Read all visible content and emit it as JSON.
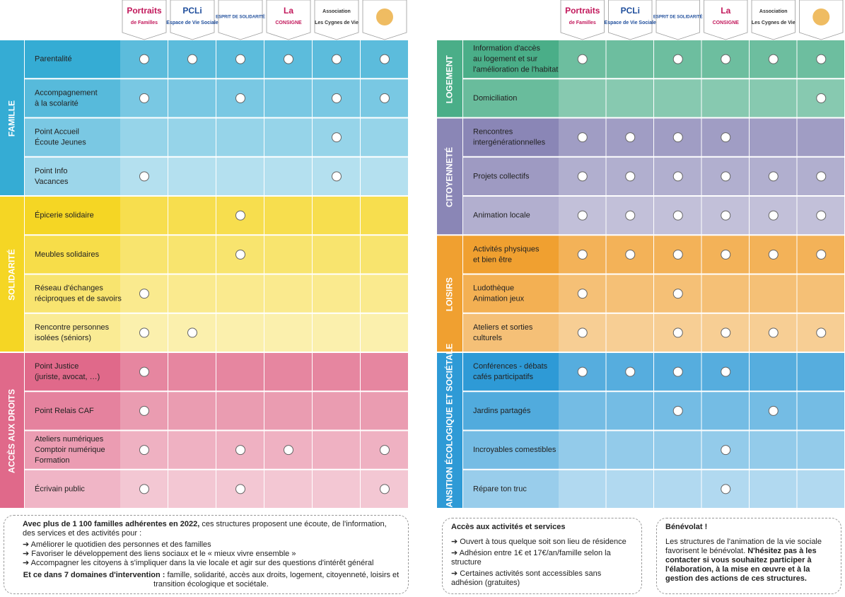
{
  "structures": [
    {
      "lines": [
        "Portraits",
        "de Familles"
      ],
      "color": "#c2185b"
    },
    {
      "lines": [
        "PCLi",
        "Espace de Vie Sociale"
      ],
      "color": "#1f4e9c"
    },
    {
      "lines": [
        "ESPRIT DE SOLIDARITÉ"
      ],
      "color": "#1f4e9c"
    },
    {
      "lines": [
        "La",
        "CONSIGNE"
      ],
      "color": "#c2185b"
    },
    {
      "lines": [
        "Association",
        "Les Cygnes de Vie"
      ],
      "color": "#333333"
    },
    {
      "color": "#e8a020"
    }
  ],
  "panels": [
    {
      "sections": [
        {
          "title": "FAMILLE",
          "color": "#35acd4",
          "rows": [
            {
              "label": [
                "Parentalité"
              ],
              "structures": [
                0,
                1,
                2,
                3,
                4,
                5
              ]
            },
            {
              "label": [
                "Accompagnement",
                "à la scolarité"
              ],
              "structures": [
                0,
                2,
                4,
                5
              ]
            },
            {
              "label": [
                "Point Accueil",
                "Écoute Jeunes"
              ],
              "structures": [
                4
              ]
            },
            {
              "label": [
                "Point Info",
                "Vacances"
              ],
              "structures": [
                0,
                4
              ]
            }
          ]
        },
        {
          "title": "SOLIDARITÉ",
          "color": "#f5d624",
          "rows": [
            {
              "label": [
                "Épicerie solidaire"
              ],
              "structures": [
                2
              ]
            },
            {
              "label": [
                "Meubles solidaires"
              ],
              "structures": [
                2
              ]
            },
            {
              "label": [
                "Réseau d'échanges",
                "réciproques et de savoirs"
              ],
              "structures": [
                0
              ]
            },
            {
              "label": [
                "Rencontre personnes",
                "isolées (séniors)"
              ],
              "structures": [
                0,
                1
              ]
            }
          ]
        },
        {
          "title": "ACCÈS AUX DROITS",
          "color": "#e0698a",
          "rows": [
            {
              "label": [
                "Point Justice",
                "(juriste, avocat, …)"
              ],
              "structures": [
                0
              ]
            },
            {
              "label": [
                "Point Relais CAF"
              ],
              "structures": [
                0
              ]
            },
            {
              "label": [
                "Ateliers numériques",
                "Comptoir numérique",
                "Formation"
              ],
              "structures": [
                0,
                2,
                3,
                5
              ]
            },
            {
              "label": [
                "Écrivain public"
              ],
              "structures": [
                0,
                2,
                5
              ]
            }
          ]
        }
      ]
    },
    {
      "sections": [
        {
          "title": "LOGEMENT",
          "color": "#4aae88",
          "rows": [
            {
              "label": [
                "Information d'accès",
                "au logement et sur",
                "l'amélioration de l'habitat"
              ],
              "structures": [
                0,
                2,
                3,
                4,
                5
              ]
            },
            {
              "label": [
                "Domiciliation"
              ],
              "structures": [
                5
              ]
            }
          ]
        },
        {
          "title": "CITOYENNETÉ",
          "color": "#8a86b6",
          "rows": [
            {
              "label": [
                "Rencontres",
                "intergénérationnelles"
              ],
              "structures": [
                0,
                1,
                2,
                3
              ]
            },
            {
              "label": [
                "Projets collectifs"
              ],
              "structures": [
                0,
                1,
                2,
                3,
                4,
                5
              ]
            },
            {
              "label": [
                "Animation locale"
              ],
              "structures": [
                0,
                1,
                2,
                3,
                4,
                5
              ]
            }
          ]
        },
        {
          "title": "LOISIRS",
          "color": "#f0a030",
          "rows": [
            {
              "label": [
                "Activités physiques",
                "et bien être"
              ],
              "structures": [
                0,
                1,
                2,
                3,
                4,
                5
              ]
            },
            {
              "label": [
                "Ludothèque",
                "Animation jeux"
              ],
              "structures": [
                0,
                2
              ]
            },
            {
              "label": [
                "Ateliers et sorties",
                "culturels"
              ],
              "structures": [
                0,
                2,
                3,
                4,
                5
              ]
            }
          ]
        },
        {
          "title": "TRANSITION ÉCOLOGIQUE ET SOCIÉTALE",
          "color": "#2e9ad6",
          "rows": [
            {
              "label": [
                "Conférences - débats",
                "cafés participatifs"
              ],
              "structures": [
                0,
                1,
                2,
                3
              ]
            },
            {
              "label": [
                "Jardins partagés"
              ],
              "structures": [
                2,
                4
              ]
            },
            {
              "label": [
                "Incroyables comestibles"
              ],
              "structures": [
                3
              ]
            },
            {
              "label": [
                "Répare ton truc"
              ],
              "structures": [
                3
              ]
            }
          ]
        }
      ]
    }
  ],
  "notes": {
    "intro": {
      "bold": "Avec plus de 1 100 familles adhérentes en 2022,",
      "text": "ces structures proposent une écoute, de l'information, des services et des activités pour :"
    },
    "bullets": [
      "➔ Améliorer le quotidien des personnes et des familles",
      "➔ Favoriser le développement des liens sociaux et le « mieux vivre ensemble »",
      "➔ Accompagner les citoyens à s'impliquer dans la vie locale et agir sur des questions d'intérêt général"
    ],
    "outro": {
      "bold": "Et ce dans 7 domaines d'intervention :",
      "text": "famille, solidarité, accès aux droits, logement, citoyenneté, loisirs et transition écologique et sociétale."
    },
    "access": {
      "title": "Accès aux activités et services",
      "bullets": [
        "➔ Ouvert à tous quelque soit son lieu de résidence",
        "➔ Adhésion entre 1€ et 17€/an/famille selon la structure",
        "➔ Certaines activités sont accessibles sans adhésion (gratuites)"
      ]
    },
    "volunteer": {
      "title": "Bénévolat !",
      "text": "Les structures de l'animation de la vie sociale favorisent le bénévolat.",
      "bold": "N'hésitez pas à les contacter si vous souhaitez participer à l'élaboration, à la mise en œuvre et à la gestion des actions de ces structures."
    }
  }
}
